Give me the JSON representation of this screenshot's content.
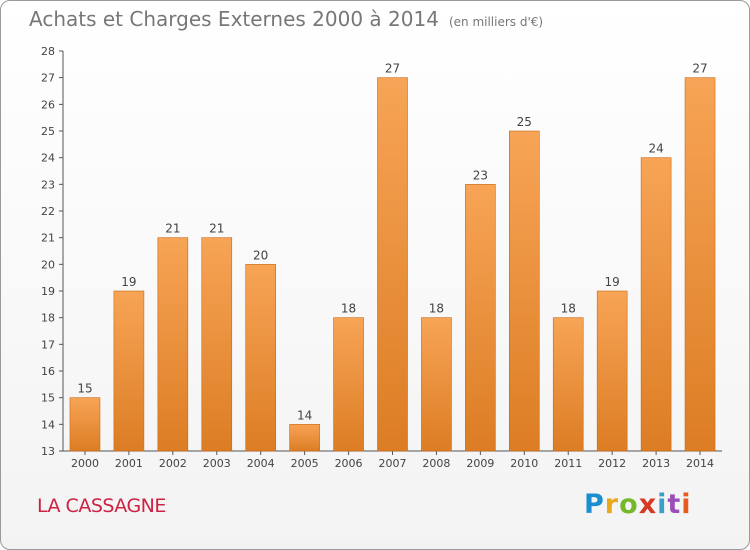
{
  "title": "Achats et Charges Externes 2000 à 2014",
  "subtitle": "(en milliers d'€)",
  "place_name": "LA CASSAGNE",
  "logo": {
    "text": "Proxiti",
    "colors": [
      "#1a8fd0",
      "#e8a91a",
      "#77b82a",
      "#d63a24",
      "#3aa0c8",
      "#9a4fb8",
      "#e85a1e"
    ]
  },
  "colors": {
    "bar_top": "#f7a456",
    "bar_bottom": "#dc7d24",
    "bar_stroke": "#c86a16"
  },
  "chart_data": {
    "type": "bar",
    "title": "Achats et Charges Externes 2000 à 2014",
    "subtitle": "(en milliers d'€)",
    "categories": [
      "2000",
      "2001",
      "2002",
      "2003",
      "2004",
      "2005",
      "2006",
      "2007",
      "2008",
      "2009",
      "2010",
      "2011",
      "2012",
      "2013",
      "2014"
    ],
    "values": [
      15,
      19,
      21,
      21,
      20,
      14,
      18,
      27,
      18,
      23,
      25,
      18,
      19,
      24,
      27
    ],
    "ylim": [
      13,
      28
    ],
    "yticks": [
      13,
      14,
      15,
      16,
      17,
      18,
      19,
      20,
      21,
      22,
      23,
      24,
      25,
      26,
      27,
      28
    ],
    "grid": false,
    "xlabel": "",
    "ylabel": ""
  }
}
